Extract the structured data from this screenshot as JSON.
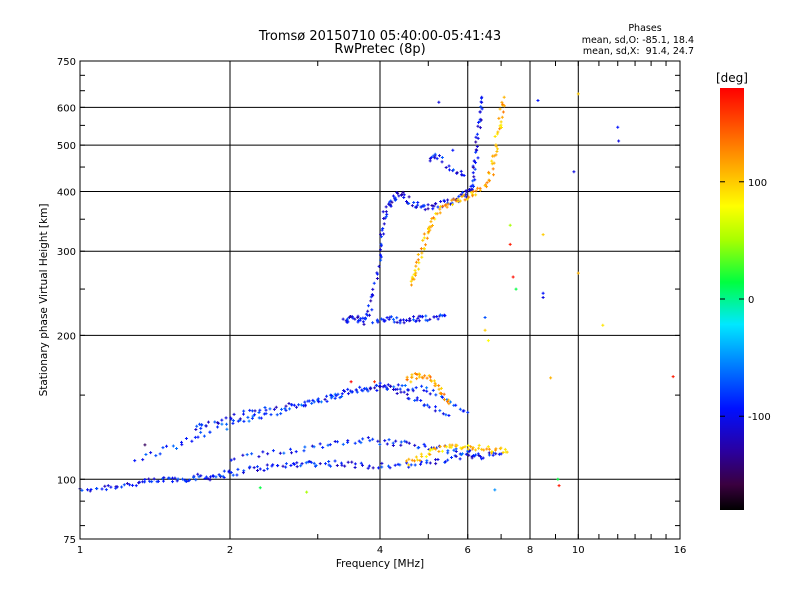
{
  "chart_data": {
    "type": "scatter",
    "title": "Tromsø 20150710 05:40:00-05:41:43",
    "subtitle": "RwPretec (8p)",
    "xlabel": "Frequency [MHz]",
    "ylabel": "Stationary phase Virtual Height [km]",
    "x_scale": "log",
    "y_scale": "log",
    "xlim": [
      1,
      16
    ],
    "ylim": [
      75,
      750
    ],
    "x_ticks": [
      1,
      2,
      4,
      6,
      8,
      10,
      16
    ],
    "x_tick_labels": [
      "1",
      "2",
      "4",
      "6",
      "8",
      "10",
      "16"
    ],
    "y_ticks": [
      75,
      100,
      200,
      300,
      400,
      500,
      600,
      750
    ],
    "y_tick_labels": [
      "75",
      "100",
      "200",
      "300",
      "400",
      "500",
      "600",
      "750"
    ],
    "grid": true,
    "stats": {
      "heading": "Phases",
      "lines": [
        "mean, sd,O: -85.1, 18.4",
        "mean, sd,X:  91.4, 24.7"
      ]
    },
    "colorbar": {
      "title": "[deg]",
      "ticks": [
        100,
        0,
        -100
      ],
      "tick_labels": [
        "100",
        "0",
        "-100"
      ],
      "range": [
        -180,
        180
      ]
    },
    "traces": [
      {
        "name": "",
        "phase": -100,
        "points": [
          [
            0.95,
            92
          ],
          [
            1.0,
            95
          ],
          [
            1.1,
            96
          ],
          [
            1.2,
            97
          ],
          [
            1.3,
            98
          ],
          [
            1.4,
            99
          ],
          [
            1.5,
            100
          ],
          [
            1.6,
            100
          ],
          [
            1.7,
            101
          ],
          [
            1.8,
            101
          ],
          [
            1.9,
            102
          ],
          [
            2.0,
            103
          ],
          [
            2.2,
            105
          ],
          [
            2.4,
            106
          ],
          [
            2.6,
            107
          ],
          [
            2.8,
            108
          ],
          [
            3.0,
            108
          ],
          [
            3.3,
            108
          ],
          [
            3.6,
            107
          ],
          [
            4.0,
            107
          ],
          [
            4.5,
            107
          ],
          [
            5.0,
            108
          ],
          [
            5.5,
            110
          ],
          [
            6.0,
            112
          ],
          [
            6.5,
            112
          ],
          [
            7.0,
            113
          ]
        ]
      },
      {
        "name": "",
        "phase": -90,
        "points": [
          [
            1.3,
            110
          ],
          [
            1.5,
            116
          ],
          [
            1.7,
            122
          ],
          [
            1.9,
            128
          ],
          [
            2.1,
            132
          ],
          [
            2.3,
            136
          ],
          [
            2.6,
            140
          ],
          [
            2.9,
            145
          ],
          [
            3.2,
            149
          ],
          [
            3.5,
            152
          ],
          [
            3.8,
            155
          ],
          [
            4.2,
            156
          ],
          [
            4.6,
            156
          ],
          [
            5.0,
            154
          ],
          [
            5.5,
            146
          ],
          [
            6.0,
            138
          ]
        ]
      },
      {
        "name": "",
        "phase": -100,
        "points": [
          [
            1.7,
            128
          ],
          [
            1.8,
            130
          ],
          [
            2.0,
            134
          ],
          [
            2.2,
            138
          ],
          [
            2.4,
            140
          ],
          [
            2.7,
            143
          ],
          [
            3.0,
            146
          ],
          [
            3.3,
            150
          ],
          [
            3.7,
            155
          ],
          [
            4.0,
            157
          ],
          [
            4.3,
            154
          ],
          [
            4.6,
            148
          ],
          [
            5.0,
            142
          ],
          [
            5.5,
            136
          ]
        ]
      },
      {
        "name": "",
        "phase": -95,
        "points": [
          [
            2.0,
            110
          ],
          [
            2.4,
            113
          ],
          [
            2.8,
            116
          ],
          [
            3.2,
            119
          ],
          [
            3.6,
            121
          ],
          [
            4.0,
            120
          ],
          [
            4.4,
            119
          ],
          [
            4.8,
            118
          ],
          [
            5.3,
            116
          ],
          [
            5.8,
            114
          ],
          [
            6.3,
            113
          ]
        ]
      },
      {
        "name": "",
        "phase": -105,
        "points": [
          [
            3.4,
            215
          ],
          [
            3.5,
            216
          ],
          [
            3.6,
            217
          ],
          [
            3.7,
            214
          ],
          [
            3.8,
            222
          ],
          [
            3.9,
            250
          ],
          [
            4.0,
            290
          ],
          [
            4.05,
            330
          ],
          [
            4.1,
            360
          ],
          [
            4.2,
            380
          ],
          [
            4.3,
            390
          ],
          [
            4.4,
            396
          ],
          [
            4.6,
            380
          ],
          [
            4.8,
            372
          ],
          [
            5.0,
            370
          ],
          [
            5.3,
            376
          ],
          [
            5.6,
            383
          ],
          [
            5.8,
            389
          ],
          [
            6.0,
            398
          ],
          [
            6.1,
            410
          ],
          [
            6.2,
            440
          ],
          [
            6.25,
            480
          ],
          [
            6.3,
            530
          ],
          [
            6.35,
            580
          ],
          [
            6.4,
            630
          ]
        ]
      },
      {
        "name": "",
        "phase": -100,
        "points": [
          [
            3.9,
            215
          ],
          [
            4.1,
            216
          ],
          [
            4.3,
            216
          ],
          [
            4.5,
            215
          ],
          [
            4.7,
            216
          ],
          [
            4.9,
            217
          ],
          [
            5.2,
            218
          ],
          [
            5.4,
            220
          ]
        ]
      },
      {
        "name": "",
        "phase": 110,
        "points": [
          [
            4.6,
            256
          ],
          [
            4.7,
            270
          ],
          [
            4.8,
            290
          ],
          [
            4.9,
            310
          ],
          [
            5.0,
            330
          ],
          [
            5.1,
            350
          ],
          [
            5.3,
            368
          ],
          [
            5.6,
            380
          ],
          [
            5.9,
            388
          ],
          [
            6.2,
            396
          ],
          [
            6.5,
            410
          ],
          [
            6.7,
            440
          ],
          [
            6.8,
            480
          ],
          [
            6.9,
            530
          ],
          [
            7.0,
            580
          ],
          [
            7.1,
            630
          ]
        ]
      },
      {
        "name": "",
        "phase": 100,
        "points": [
          [
            4.5,
            108
          ],
          [
            4.8,
            111
          ],
          [
            5.1,
            114
          ],
          [
            5.4,
            116
          ],
          [
            5.7,
            117
          ],
          [
            6.0,
            117
          ],
          [
            6.4,
            116
          ],
          [
            6.8,
            115
          ],
          [
            7.2,
            114
          ]
        ]
      },
      {
        "name": "",
        "phase": 120,
        "points": [
          [
            4.5,
            160
          ],
          [
            4.7,
            164
          ],
          [
            4.9,
            165
          ],
          [
            5.1,
            160
          ],
          [
            5.3,
            152
          ],
          [
            5.5,
            144
          ]
        ]
      },
      {
        "name": "",
        "phase": -100,
        "points": [
          [
            5.0,
            465
          ],
          [
            5.2,
            475
          ],
          [
            5.6,
            440
          ],
          [
            5.9,
            432
          ]
        ]
      }
    ],
    "isolated_points": [
      {
        "x": 1.35,
        "y": 118,
        "phase": -150
      },
      {
        "x": 2.3,
        "y": 96,
        "phase": 0
      },
      {
        "x": 2.85,
        "y": 94,
        "phase": 40
      },
      {
        "x": 3.5,
        "y": 160,
        "phase": 180
      },
      {
        "x": 3.9,
        "y": 160,
        "phase": 160
      },
      {
        "x": 5.25,
        "y": 615,
        "phase": -110
      },
      {
        "x": 5.6,
        "y": 488,
        "phase": -100
      },
      {
        "x": 6.5,
        "y": 218,
        "phase": -80
      },
      {
        "x": 6.5,
        "y": 205,
        "phase": 100
      },
      {
        "x": 6.6,
        "y": 195,
        "phase": 80
      },
      {
        "x": 6.8,
        "y": 95,
        "phase": -60
      },
      {
        "x": 7.3,
        "y": 340,
        "phase": 40
      },
      {
        "x": 7.3,
        "y": 310,
        "phase": 170
      },
      {
        "x": 7.4,
        "y": 265,
        "phase": 175
      },
      {
        "x": 7.5,
        "y": 250,
        "phase": 0
      },
      {
        "x": 8.3,
        "y": 620,
        "phase": -100
      },
      {
        "x": 8.5,
        "y": 325,
        "phase": 100
      },
      {
        "x": 8.5,
        "y": 245,
        "phase": -100
      },
      {
        "x": 8.5,
        "y": 240,
        "phase": -110
      },
      {
        "x": 8.8,
        "y": 163,
        "phase": 110
      },
      {
        "x": 9.1,
        "y": 100,
        "phase": 0
      },
      {
        "x": 9.15,
        "y": 97,
        "phase": 170
      },
      {
        "x": 9.8,
        "y": 440,
        "phase": -110
      },
      {
        "x": 10.0,
        "y": 640,
        "phase": 100
      },
      {
        "x": 10.0,
        "y": 270,
        "phase": 110
      },
      {
        "x": 11.2,
        "y": 210,
        "phase": 90
      },
      {
        "x": 12.0,
        "y": 545,
        "phase": -100
      },
      {
        "x": 12.05,
        "y": 510,
        "phase": -110
      },
      {
        "x": 15.5,
        "y": 164,
        "phase": 170
      }
    ]
  }
}
